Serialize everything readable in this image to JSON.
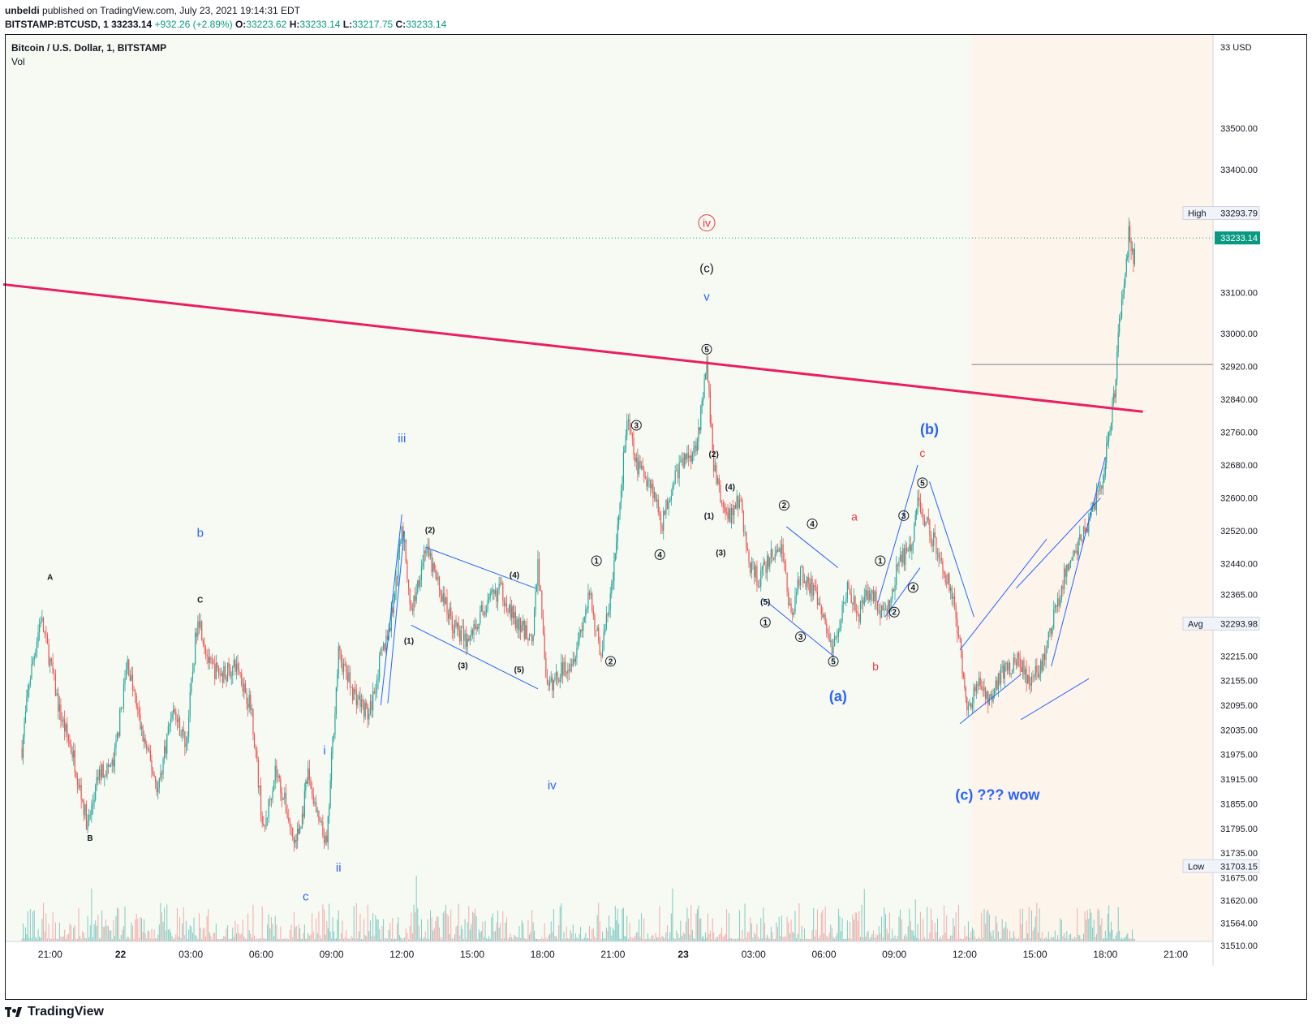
{
  "header": {
    "author": "unbeldi",
    "published": "published on TradingView.com, July 23, 2021 19:14:31 EDT",
    "symbol": "BITSTAMP:BTCUSD, 1",
    "last": "33233.14",
    "change": "+932.26 (+2.89%)",
    "o_label": "O:",
    "o": "33223.62",
    "h_label": "H:",
    "h": "33233.14",
    "l_label": "L:",
    "l": "33217.75",
    "c_label": "C:",
    "c": "33233.14"
  },
  "legend": {
    "title": "Bitcoin / U.S. Dollar, 1, BITSTAMP",
    "vol": "Vol"
  },
  "footer": {
    "brand": "TradingView"
  },
  "colors": {
    "up": "#26a69a",
    "down": "#ef5350",
    "trendline": "#e91e63",
    "annot_blue": "#2962ff",
    "annot_red": "#f23645",
    "annot_black": "#131722",
    "wave_line": "#2962ff",
    "last_price_bg": "#089981"
  },
  "chart_data": {
    "type": "candlestick",
    "title": "Bitcoin / U.S. Dollar, 1, BITSTAMP",
    "currency": "USD",
    "ylim": [
      31510,
      33700
    ],
    "ytick_labels": [
      "33500.00",
      "33400.00",
      "33100.00",
      "33000.00",
      "32920.00",
      "32840.00",
      "32760.00",
      "32680.00",
      "32600.00",
      "32520.00",
      "32440.00",
      "32365.00",
      "32215.00",
      "32155.00",
      "32095.00",
      "32035.00",
      "31975.00",
      "31915.00",
      "31855.00",
      "31795.00",
      "31735.00",
      "31675.00",
      "31620.00",
      "31564.00",
      "31510.00"
    ],
    "yticks": [
      33500,
      33400,
      33100,
      33000,
      32920,
      32840,
      32760,
      32680,
      32600,
      32520,
      32440,
      32365,
      32215,
      32155,
      32095,
      32035,
      31975,
      31915,
      31855,
      31795,
      31735,
      31675,
      31620,
      31564,
      31510
    ],
    "top_tick_label": "33 USD",
    "xtick_labels": [
      "21:00",
      "22",
      "03:00",
      "06:00",
      "09:00",
      "12:00",
      "15:00",
      "18:00",
      "21:00",
      "23",
      "03:00",
      "06:00",
      "09:00",
      "12:00",
      "15:00",
      "18:00",
      "21:00"
    ],
    "xticks_hours": [
      -3,
      0,
      3,
      6,
      9,
      12,
      15,
      18,
      21,
      24,
      27,
      30,
      33,
      36,
      39,
      42,
      45
    ],
    "price_markers": [
      {
        "label": "High",
        "value": "33293.79",
        "y": 33293.79
      },
      {
        "label": "",
        "value": "33233.14",
        "y": 33233.14,
        "last": true
      },
      {
        "label": "Avg",
        "value": "32293.98",
        "y": 32293.98
      },
      {
        "label": "Low",
        "value": "31703.15",
        "y": 31703.15
      }
    ],
    "series": [
      {
        "t": -4.2,
        "y": 31990
      },
      {
        "t": -3.9,
        "y": 32150
      },
      {
        "t": -3.4,
        "y": 32310
      },
      {
        "t": -3.0,
        "y": 32200
      },
      {
        "t": -2.6,
        "y": 32080
      },
      {
        "t": -2.0,
        "y": 31970
      },
      {
        "t": -1.4,
        "y": 31800
      },
      {
        "t": -0.9,
        "y": 31930
      },
      {
        "t": -0.3,
        "y": 31950
      },
      {
        "t": 0.3,
        "y": 32200
      },
      {
        "t": 0.9,
        "y": 32030
      },
      {
        "t": 1.6,
        "y": 31890
      },
      {
        "t": 2.2,
        "y": 32090
      },
      {
        "t": 2.8,
        "y": 32000
      },
      {
        "t": 3.3,
        "y": 32320
      },
      {
        "t": 3.8,
        "y": 32190
      },
      {
        "t": 4.3,
        "y": 32170
      },
      {
        "t": 5.0,
        "y": 32190
      },
      {
        "t": 5.6,
        "y": 32080
      },
      {
        "t": 6.1,
        "y": 31780
      },
      {
        "t": 6.6,
        "y": 31940
      },
      {
        "t": 7.0,
        "y": 31860
      },
      {
        "t": 7.4,
        "y": 31760
      },
      {
        "t": 7.7,
        "y": 31800
      },
      {
        "t": 8.0,
        "y": 31930
      },
      {
        "t": 8.4,
        "y": 31820
      },
      {
        "t": 8.8,
        "y": 31750
      },
      {
        "t": 9.0,
        "y": 31960
      },
      {
        "t": 9.3,
        "y": 32220
      },
      {
        "t": 9.9,
        "y": 32130
      },
      {
        "t": 10.6,
        "y": 32070
      },
      {
        "t": 11.1,
        "y": 32210
      },
      {
        "t": 11.5,
        "y": 32290
      },
      {
        "t": 11.8,
        "y": 32420
      },
      {
        "t": 12.0,
        "y": 32540
      },
      {
        "t": 12.4,
        "y": 32320
      },
      {
        "t": 13.0,
        "y": 32480
      },
      {
        "t": 13.6,
        "y": 32380
      },
      {
        "t": 14.2,
        "y": 32290
      },
      {
        "t": 14.8,
        "y": 32250
      },
      {
        "t": 15.5,
        "y": 32330
      },
      {
        "t": 16.2,
        "y": 32380
      },
      {
        "t": 16.9,
        "y": 32290
      },
      {
        "t": 17.6,
        "y": 32260
      },
      {
        "t": 17.8,
        "y": 32450
      },
      {
        "t": 18.2,
        "y": 32130
      },
      {
        "t": 18.8,
        "y": 32180
      },
      {
        "t": 19.3,
        "y": 32210
      },
      {
        "t": 20.0,
        "y": 32360
      },
      {
        "t": 20.5,
        "y": 32220
      },
      {
        "t": 21.0,
        "y": 32400
      },
      {
        "t": 21.3,
        "y": 32590
      },
      {
        "t": 21.6,
        "y": 32790
      },
      {
        "t": 22.0,
        "y": 32680
      },
      {
        "t": 22.6,
        "y": 32640
      },
      {
        "t": 23.1,
        "y": 32540
      },
      {
        "t": 23.6,
        "y": 32650
      },
      {
        "t": 24.0,
        "y": 32690
      },
      {
        "t": 24.5,
        "y": 32720
      },
      {
        "t": 24.8,
        "y": 32820
      },
      {
        "t": 25.0,
        "y": 32920
      },
      {
        "t": 25.3,
        "y": 32680
      },
      {
        "t": 25.7,
        "y": 32570
      },
      {
        "t": 26.0,
        "y": 32560
      },
      {
        "t": 26.4,
        "y": 32600
      },
      {
        "t": 26.8,
        "y": 32440
      },
      {
        "t": 27.2,
        "y": 32400
      },
      {
        "t": 27.8,
        "y": 32460
      },
      {
        "t": 28.2,
        "y": 32480
      },
      {
        "t": 28.6,
        "y": 32310
      },
      {
        "t": 29.0,
        "y": 32420
      },
      {
        "t": 29.5,
        "y": 32380
      },
      {
        "t": 30.0,
        "y": 32300
      },
      {
        "t": 30.4,
        "y": 32230
      },
      {
        "t": 31.0,
        "y": 32390
      },
      {
        "t": 31.5,
        "y": 32320
      },
      {
        "t": 32.0,
        "y": 32380
      },
      {
        "t": 32.4,
        "y": 32320
      },
      {
        "t": 32.8,
        "y": 32330
      },
      {
        "t": 33.2,
        "y": 32450
      },
      {
        "t": 33.7,
        "y": 32470
      },
      {
        "t": 34.0,
        "y": 32590
      },
      {
        "t": 34.4,
        "y": 32540
      },
      {
        "t": 34.9,
        "y": 32460
      },
      {
        "t": 35.4,
        "y": 32380
      },
      {
        "t": 35.8,
        "y": 32250
      },
      {
        "t": 36.1,
        "y": 32070
      },
      {
        "t": 36.5,
        "y": 32150
      },
      {
        "t": 37.0,
        "y": 32110
      },
      {
        "t": 37.6,
        "y": 32170
      },
      {
        "t": 38.2,
        "y": 32210
      },
      {
        "t": 38.8,
        "y": 32150
      },
      {
        "t": 39.3,
        "y": 32190
      },
      {
        "t": 39.8,
        "y": 32310
      },
      {
        "t": 40.3,
        "y": 32420
      },
      {
        "t": 40.8,
        "y": 32480
      },
      {
        "t": 41.4,
        "y": 32560
      },
      {
        "t": 41.9,
        "y": 32650
      },
      {
        "t": 42.2,
        "y": 32780
      },
      {
        "t": 42.4,
        "y": 32860
      },
      {
        "t": 42.6,
        "y": 33020
      },
      {
        "t": 42.8,
        "y": 33120
      },
      {
        "t": 43.0,
        "y": 33240
      },
      {
        "t": 43.2,
        "y": 33170
      },
      {
        "t": 43.3,
        "y": 33233
      }
    ],
    "overlays": {
      "trendline": [
        {
          "t": -5.0,
          "y": 33120
        },
        {
          "t": 43.6,
          "y": 32810
        }
      ],
      "hline": {
        "t0": 36.3,
        "t1": 46.6,
        "y": 32925
      },
      "shaded_zone_start_t": 36.3
    },
    "annotations": [
      {
        "text": "A",
        "t": -3.0,
        "y": 32400,
        "color": "black",
        "size": 10
      },
      {
        "text": "B",
        "t": -1.3,
        "y": 31765,
        "color": "black",
        "size": 10
      },
      {
        "text": "C",
        "t": 3.4,
        "y": 32345,
        "color": "black",
        "size": 10
      },
      {
        "text": "b",
        "t": 3.4,
        "y": 32505,
        "color": "blue",
        "size": 15
      },
      {
        "text": "i",
        "t": 8.7,
        "y": 31975,
        "color": "blue",
        "size": 15
      },
      {
        "text": "ii",
        "t": 9.3,
        "y": 31690,
        "color": "blue",
        "size": 15
      },
      {
        "text": "c",
        "t": 7.9,
        "y": 31620,
        "color": "blue",
        "size": 15
      },
      {
        "text": "iii",
        "t": 12.0,
        "y": 32735,
        "color": "blue",
        "size": 15
      },
      {
        "text": "iv",
        "t": 18.4,
        "y": 31890,
        "color": "blue",
        "size": 15
      },
      {
        "text": "v",
        "t": 25.0,
        "y": 33080,
        "color": "blue",
        "size": 15
      },
      {
        "text": "(c)",
        "t": 25.0,
        "y": 33150,
        "color": "black",
        "size": 15
      },
      {
        "text": "iv",
        "t": 25.0,
        "y": 33260,
        "color": "red",
        "size": 14,
        "circle": true
      },
      {
        "text": "(1)",
        "t": 12.3,
        "y": 32245,
        "color": "black",
        "size": 10
      },
      {
        "text": "(2)",
        "t": 13.2,
        "y": 32515,
        "color": "black",
        "size": 10
      },
      {
        "text": "(3)",
        "t": 14.6,
        "y": 32185,
        "color": "black",
        "size": 10
      },
      {
        "text": "(4)",
        "t": 16.8,
        "y": 32405,
        "color": "black",
        "size": 10
      },
      {
        "text": "(5)",
        "t": 17.0,
        "y": 32175,
        "color": "black",
        "size": 10
      },
      {
        "text": "1",
        "t": 20.3,
        "y": 32440,
        "color": "black",
        "size": 10,
        "circle": true
      },
      {
        "text": "2",
        "t": 20.9,
        "y": 32195,
        "color": "black",
        "size": 10,
        "circle": true
      },
      {
        "text": "3",
        "t": 22.0,
        "y": 32770,
        "color": "black",
        "size": 10,
        "circle": true
      },
      {
        "text": "4",
        "t": 23.0,
        "y": 32455,
        "color": "black",
        "size": 10,
        "circle": true
      },
      {
        "text": "5",
        "t": 25.0,
        "y": 32955,
        "color": "black",
        "size": 10,
        "circle": true
      },
      {
        "text": "(2)",
        "t": 25.3,
        "y": 32700,
        "color": "black",
        "size": 10
      },
      {
        "text": "(4)",
        "t": 26.0,
        "y": 32620,
        "color": "black",
        "size": 10
      },
      {
        "text": "(1)",
        "t": 25.1,
        "y": 32550,
        "color": "black",
        "size": 10
      },
      {
        "text": "(3)",
        "t": 25.6,
        "y": 32460,
        "color": "black",
        "size": 10
      },
      {
        "text": "(5)",
        "t": 27.5,
        "y": 32340,
        "color": "black",
        "size": 10
      },
      {
        "text": "1",
        "t": 27.5,
        "y": 32290,
        "color": "black",
        "size": 10,
        "circle": true
      },
      {
        "text": "2",
        "t": 28.3,
        "y": 32575,
        "color": "black",
        "size": 10,
        "circle": true
      },
      {
        "text": "3",
        "t": 29.0,
        "y": 32255,
        "color": "black",
        "size": 10,
        "circle": true
      },
      {
        "text": "4",
        "t": 29.5,
        "y": 32530,
        "color": "black",
        "size": 10,
        "circle": true
      },
      {
        "text": "5",
        "t": 30.4,
        "y": 32195,
        "color": "black",
        "size": 10,
        "circle": true
      },
      {
        "text": "a",
        "t": 31.3,
        "y": 32545,
        "color": "red",
        "size": 14
      },
      {
        "text": "b",
        "t": 32.2,
        "y": 32180,
        "color": "red",
        "size": 14
      },
      {
        "text": "(a)",
        "t": 30.6,
        "y": 32105,
        "color": "blue",
        "size": 18
      },
      {
        "text": "1",
        "t": 32.4,
        "y": 32440,
        "color": "black",
        "size": 10,
        "circle": true
      },
      {
        "text": "2",
        "t": 33.0,
        "y": 32315,
        "color": "black",
        "size": 10,
        "circle": true
      },
      {
        "text": "3",
        "t": 33.4,
        "y": 32550,
        "color": "black",
        "size": 10,
        "circle": true
      },
      {
        "text": "4",
        "t": 33.8,
        "y": 32375,
        "color": "black",
        "size": 10,
        "circle": true
      },
      {
        "text": "5",
        "t": 34.2,
        "y": 32630,
        "color": "black",
        "size": 10,
        "circle": true
      },
      {
        "text": "c",
        "t": 34.2,
        "y": 32700,
        "color": "red",
        "size": 14
      },
      {
        "text": "(b)",
        "t": 34.5,
        "y": 32755,
        "color": "blue",
        "size": 18
      },
      {
        "text": "(c)  ??? wow",
        "t": 37.4,
        "y": 31865,
        "color": "blue",
        "size": 18
      }
    ],
    "wave_lines": [
      [
        [
          11.1,
          32095
        ],
        [
          12.0,
          32560
        ]
      ],
      [
        [
          12.4,
          32290
        ],
        [
          17.8,
          32135
        ]
      ],
      [
        [
          13.0,
          32480
        ],
        [
          17.7,
          32380
        ]
      ],
      [
        [
          11.4,
          32100
        ],
        [
          12.1,
          32520
        ]
      ],
      [
        [
          27.4,
          32355
        ],
        [
          30.4,
          32215
        ]
      ],
      [
        [
          28.4,
          32530
        ],
        [
          30.6,
          32430
        ]
      ],
      [
        [
          32.3,
          32345
        ],
        [
          34.0,
          32680
        ]
      ],
      [
        [
          32.6,
          32310
        ],
        [
          34.1,
          32430
        ]
      ],
      [
        [
          34.5,
          32640
        ],
        [
          36.4,
          32310
        ]
      ],
      [
        [
          35.8,
          32050
        ],
        [
          38.4,
          32170
        ]
      ],
      [
        [
          35.8,
          32230
        ],
        [
          39.5,
          32500
        ]
      ],
      [
        [
          38.4,
          32060
        ],
        [
          41.3,
          32160
        ]
      ],
      [
        [
          39.7,
          32190
        ],
        [
          42.0,
          32700
        ]
      ],
      [
        [
          38.2,
          32380
        ],
        [
          41.8,
          32600
        ]
      ]
    ]
  }
}
